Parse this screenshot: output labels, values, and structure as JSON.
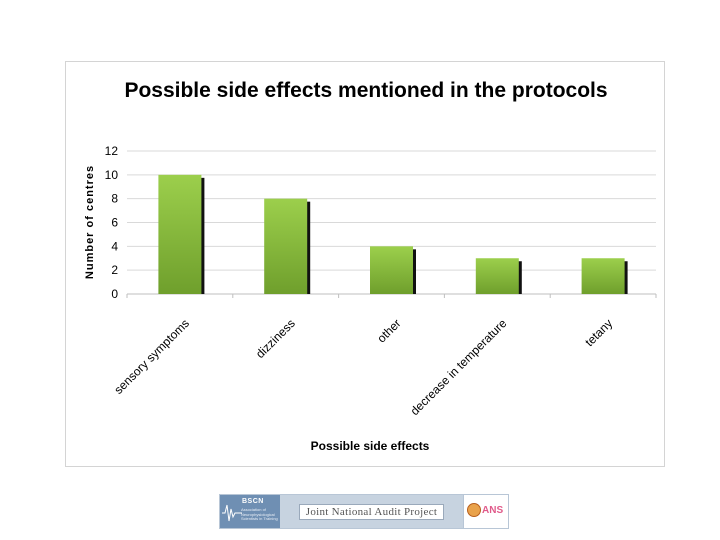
{
  "chart_data": {
    "type": "bar",
    "title": "Possible side effects mentioned in the protocols",
    "xlabel": "Possible side effects",
    "ylabel": "Number of centres",
    "categories": [
      "sensory symptoms",
      "dizziness",
      "other",
      "decrease in temperature",
      "tetany"
    ],
    "values": [
      10,
      8,
      4,
      3,
      3
    ],
    "ylim": [
      0,
      12
    ],
    "yticks": [
      "0",
      "2",
      "4",
      "6",
      "8",
      "10",
      "12"
    ],
    "grid": true,
    "legend": "none",
    "colors": {
      "bar_top": "#9ccf4c",
      "bar_bottom": "#6f9f2c",
      "shadow": "#111111",
      "grid": "#d9d9d9",
      "axis": "#bfbfbf"
    }
  },
  "footer": {
    "bscn_label": "BSCN",
    "bscn_sub": "Association of Neurophysiological Scientists in Training",
    "jnap_label": "Joint National Audit Project",
    "ans_label": "ANS",
    "wave_icon": "eeg-wave-icon",
    "seal_icon": "ans-seal-icon"
  }
}
